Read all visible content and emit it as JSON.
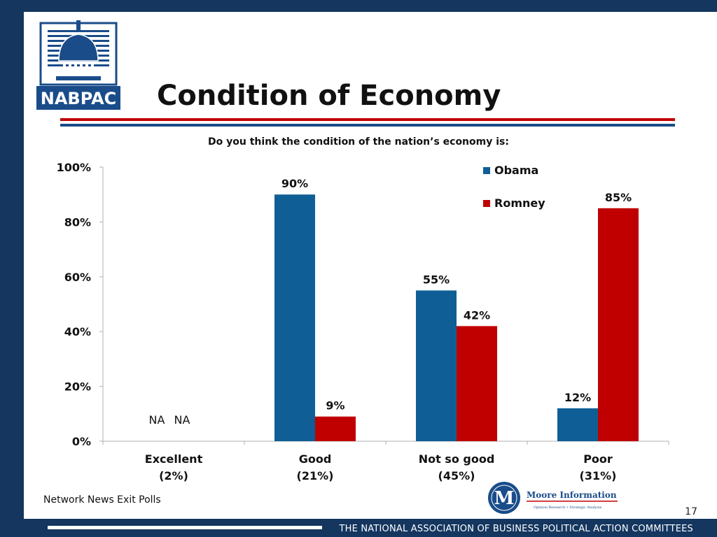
{
  "slide": {
    "title": "Condition of Economy",
    "subtitle": "Do you think the condition of the nation’s economy is:",
    "source_note": "Network News Exit Polls",
    "page_number": "17",
    "footer_text": "THE NATIONAL ASSOCIATION OF BUSINESS POLITICAL ACTION COMMITTEES",
    "logos": {
      "left": "NABPAC",
      "right_name": "Moore Information",
      "right_tagline": "Opinion Research • Strategic Analysis",
      "right_initial": "M"
    }
  },
  "colors": {
    "obama": "#0f5f96",
    "romney": "#c00000",
    "frame": "#14365f"
  },
  "chart_data": {
    "type": "bar",
    "title": "",
    "xlabel": "",
    "ylabel": "",
    "ylim": [
      0,
      100
    ],
    "y_ticks": [
      0,
      20,
      40,
      60,
      80,
      100
    ],
    "y_tick_labels": [
      "0%",
      "20%",
      "40%",
      "60%",
      "80%",
      "100%"
    ],
    "categories": [
      "Excellent",
      "Good",
      "Not so good",
      "Poor"
    ],
    "category_sublabels": [
      "(2%)",
      "(21%)",
      "(45%)",
      "(31%)"
    ],
    "series": [
      {
        "name": "Obama",
        "values": [
          null,
          90,
          55,
          12
        ],
        "labels": [
          "NA",
          "90%",
          "55%",
          "12%"
        ]
      },
      {
        "name": "Romney",
        "values": [
          null,
          9,
          42,
          85
        ],
        "labels": [
          "NA",
          "9%",
          "42%",
          "85%"
        ]
      }
    ],
    "legend_position": "top-right",
    "grid": false
  }
}
